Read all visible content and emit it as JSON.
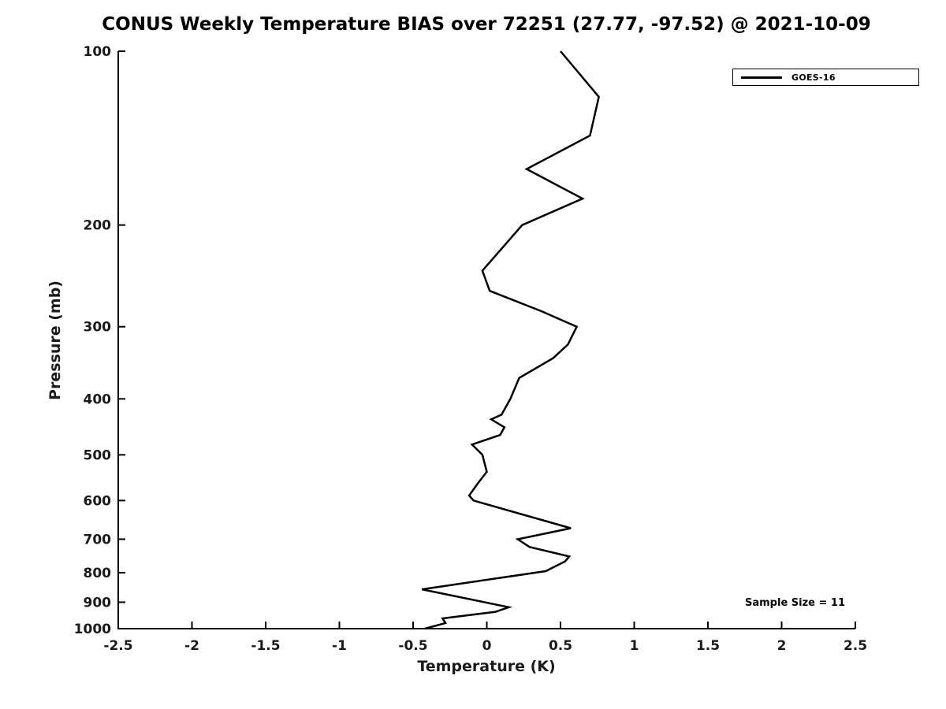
{
  "chart_data": {
    "type": "line",
    "title": "CONUS Weekly Temperature BIAS over 72251 (27.77, -97.52) @ 2021-10-09",
    "xlabel": "Temperature (K)",
    "ylabel": "Pressure (mb)",
    "xlim": [
      -2.5,
      2.5
    ],
    "ylim": [
      100,
      1000
    ],
    "y_scale": "log",
    "y_inverted": true,
    "grid": false,
    "x_ticks": [
      -2.5,
      -2,
      -1.5,
      -1,
      -0.5,
      0,
      0.5,
      1,
      1.5,
      2,
      2.5
    ],
    "x_tick_labels": [
      "-2.5",
      "-2",
      "-1.5",
      "-1",
      "-0.5",
      "0",
      "0.5",
      "1",
      "1.5",
      "2",
      "2.5"
    ],
    "y_ticks": [
      100,
      200,
      300,
      400,
      500,
      600,
      700,
      800,
      900,
      1000
    ],
    "y_tick_labels": [
      "100",
      "200",
      "300",
      "400",
      "500",
      "600",
      "700",
      "800",
      "900",
      "1000"
    ],
    "legend": {
      "position": "top-right",
      "entries": [
        {
          "label": "GOES-16",
          "color": "#000000",
          "style": "solid"
        }
      ]
    },
    "annotation": "Sample Size = 11",
    "series": [
      {
        "name": "GOES-16",
        "color": "#000000",
        "line_width": 2.5,
        "points": [
          [
            0.5,
            100
          ],
          [
            0.76,
            120
          ],
          [
            0.7,
            140
          ],
          [
            0.27,
            160
          ],
          [
            0.65,
            180
          ],
          [
            0.24,
            200
          ],
          [
            -0.03,
            240
          ],
          [
            0.02,
            260
          ],
          [
            0.37,
            282
          ],
          [
            0.61,
            300
          ],
          [
            0.55,
            322
          ],
          [
            0.45,
            340
          ],
          [
            0.22,
            368
          ],
          [
            0.16,
            400
          ],
          [
            0.1,
            426
          ],
          [
            0.03,
            434
          ],
          [
            0.12,
            448
          ],
          [
            0.09,
            462
          ],
          [
            -0.1,
            480
          ],
          [
            -0.03,
            500
          ],
          [
            0.0,
            535
          ],
          [
            -0.06,
            560
          ],
          [
            -0.12,
            588
          ],
          [
            -0.09,
            600
          ],
          [
            0.57,
            670
          ],
          [
            0.21,
            700
          ],
          [
            0.29,
            722
          ],
          [
            0.56,
            750
          ],
          [
            0.53,
            765
          ],
          [
            0.4,
            795
          ],
          [
            -0.44,
            855
          ],
          [
            0.15,
            918
          ],
          [
            0.06,
            935
          ],
          [
            -0.3,
            960
          ],
          [
            -0.28,
            978
          ],
          [
            -0.42,
            1000
          ]
        ]
      }
    ]
  }
}
